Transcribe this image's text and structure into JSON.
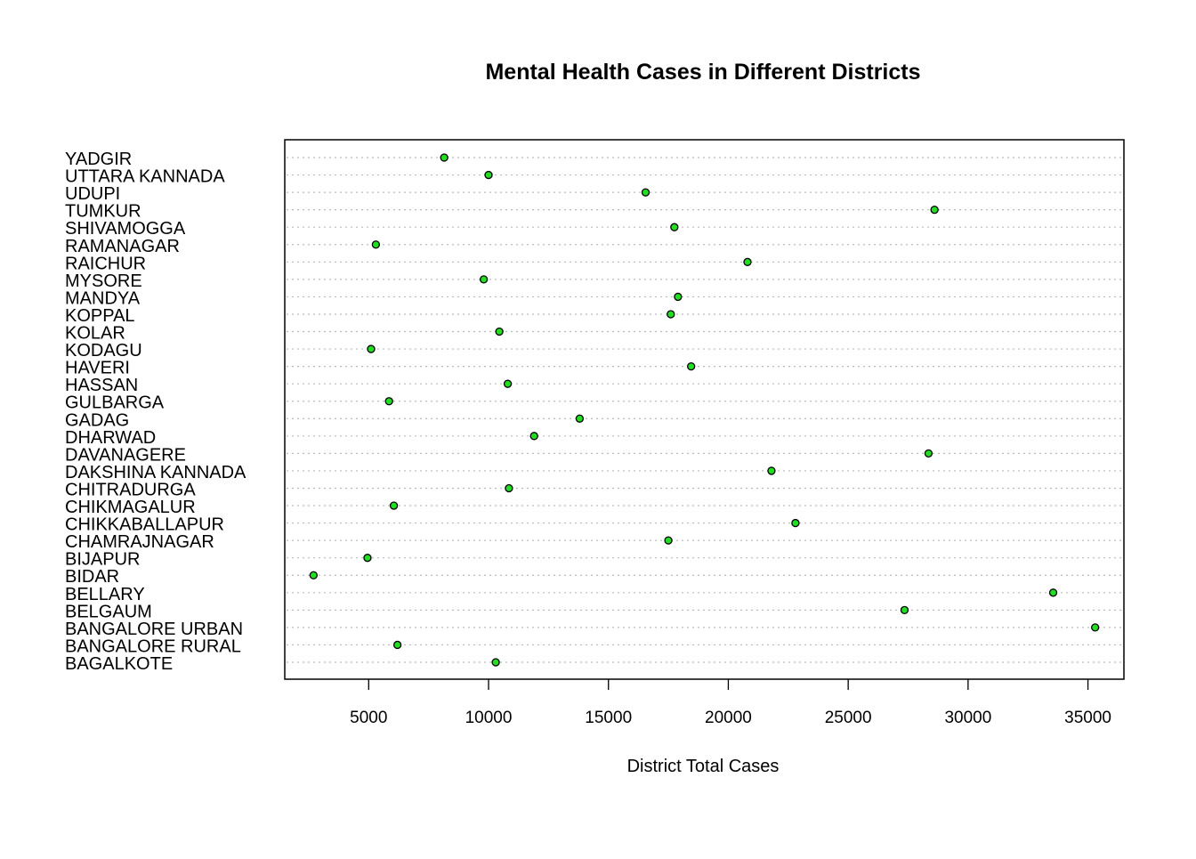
{
  "chart_data": {
    "type": "scatter",
    "title": "Mental Health Cases in Different Districts",
    "xlabel": "District Total Cases",
    "ylabel": "",
    "xlim": [
      1500,
      36500
    ],
    "xticks": [
      "5000",
      "10000",
      "15000",
      "20000",
      "25000",
      "30000",
      "35000"
    ],
    "xtick_values": [
      5000,
      10000,
      15000,
      20000,
      25000,
      30000,
      35000
    ],
    "grid": "dotted horizontal lines",
    "point_color": "#22dd22",
    "point_stroke": "#000000",
    "categories": [
      "BAGALKOTE",
      "BANGALORE RURAL",
      "BANGALORE URBAN",
      "BELGAUM",
      "BELLARY",
      "BIDAR",
      "BIJAPUR",
      "CHAMRAJNAGAR",
      "CHIKKABALLAPUR",
      "CHIKMAGALUR",
      "CHITRADURGA",
      "DAKSHINA KANNADA",
      "DAVANAGERE",
      "DHARWAD",
      "GADAG",
      "GULBARGA",
      "HASSAN",
      "HAVERI",
      "KODAGU",
      "KOLAR",
      "KOPPAL",
      "MANDYA",
      "MYSORE",
      "RAICHUR",
      "RAMANAGAR",
      "SHIVAMOGGA",
      "TUMKUR",
      "UDUPI",
      "UTTARA KANNADA",
      "YADGIR"
    ],
    "values": [
      10300,
      6200,
      35300,
      27350,
      33550,
      2700,
      4950,
      17500,
      22800,
      6050,
      10850,
      21800,
      28350,
      11900,
      13800,
      5850,
      10800,
      18450,
      5100,
      10450,
      17600,
      17900,
      9800,
      20800,
      5300,
      17750,
      28600,
      16550,
      10000,
      8150
    ]
  }
}
